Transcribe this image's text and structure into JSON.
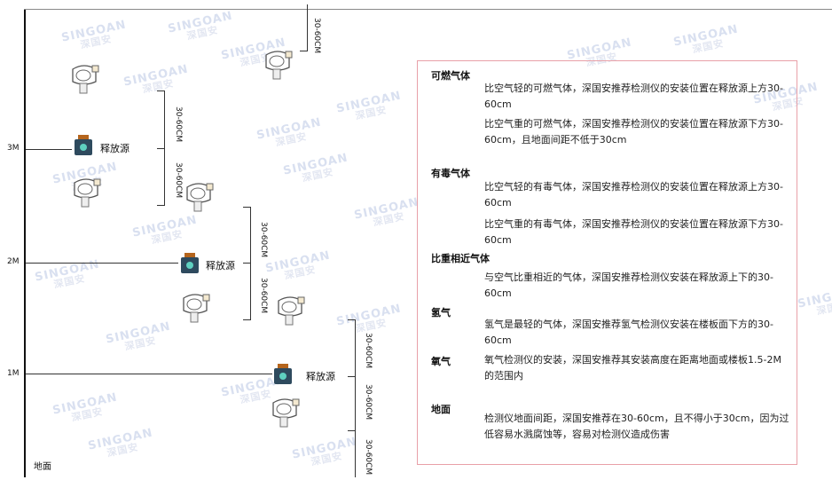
{
  "watermark": {
    "brand": "SINGOAN",
    "chinese": "深国安"
  },
  "levels": {
    "l3": "3M",
    "l2": "2M",
    "l1": "1M",
    "ground": "地面"
  },
  "source_label": "释放源",
  "dimension_label": "30-60CM",
  "panel": {
    "sections": [
      {
        "title": "可燃气体",
        "paras": [
          "比空气轻的可燃气体，深国安推荐检测仪的安装位置在释放源上方30-60cm",
          "比空气重的可燃气体，深国安推荐检测仪的安装位置在释放源下方30-60cm，且地面间距不低于30cm"
        ]
      },
      {
        "title": "有毒气体",
        "paras": [
          "比空气轻的有毒气体，深国安推荐检测仪的安装位置在释放源上方30-60cm",
          "比空气重的有毒气体，深国安推荐检测仪的安装位置在释放源下方30-60cm"
        ]
      },
      {
        "title": "比重相近气体",
        "paras": [
          "与空气比重相近的气体，深国安推荐检测仪安装在释放源上下的30-60cm"
        ]
      },
      {
        "title": "氢气",
        "paras": [
          "氢气是最轻的气体，深国安推荐氢气检测仪安装在楼板面下方的30-60cm"
        ]
      },
      {
        "title": "氧气",
        "paras": [
          "氧气检测仪的安装，深国安推荐其安装高度在距离地面或楼板1.5-2M的范围内"
        ]
      },
      {
        "title": "地面",
        "paras": [
          "检测仪地面间距，深国安推荐在30-60cm，且不得小于30cm，因为过低容易水溅腐蚀等，容易对检测仪造成伤害"
        ]
      }
    ]
  }
}
